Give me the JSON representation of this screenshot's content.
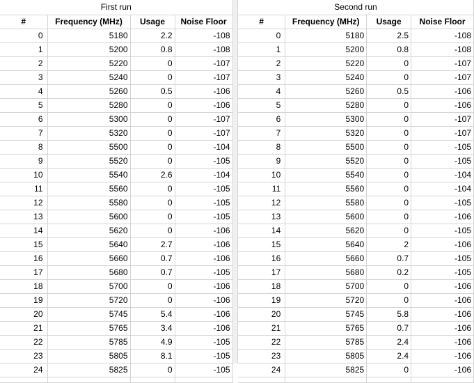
{
  "first_run": {
    "title": "First run",
    "headers": [
      "#",
      "Frequency (MHz)",
      "Usage",
      "Noise Floor"
    ],
    "rows": [
      [
        "0",
        "5180",
        "2.2",
        "-108"
      ],
      [
        "1",
        "5200",
        "0.8",
        "-108"
      ],
      [
        "2",
        "5220",
        "0",
        "-107"
      ],
      [
        "3",
        "5240",
        "0",
        "-107"
      ],
      [
        "4",
        "5260",
        "0.5",
        "-106"
      ],
      [
        "5",
        "5280",
        "0",
        "-106"
      ],
      [
        "6",
        "5300",
        "0",
        "-107"
      ],
      [
        "7",
        "5320",
        "0",
        "-107"
      ],
      [
        "8",
        "5500",
        "0",
        "-104"
      ],
      [
        "9",
        "5520",
        "0",
        "-105"
      ],
      [
        "10",
        "5540",
        "2.6",
        "-104"
      ],
      [
        "11",
        "5560",
        "0",
        "-105"
      ],
      [
        "12",
        "5580",
        "0",
        "-105"
      ],
      [
        "13",
        "5600",
        "0",
        "-105"
      ],
      [
        "14",
        "5620",
        "0",
        "-106"
      ],
      [
        "15",
        "5640",
        "2.7",
        "-106"
      ],
      [
        "16",
        "5660",
        "0.7",
        "-106"
      ],
      [
        "17",
        "5680",
        "0.7",
        "-105"
      ],
      [
        "18",
        "5700",
        "0",
        "-106"
      ],
      [
        "19",
        "5720",
        "0",
        "-106"
      ],
      [
        "20",
        "5745",
        "5.4",
        "-106"
      ],
      [
        "21",
        "5765",
        "3.4",
        "-106"
      ],
      [
        "22",
        "5785",
        "4.9",
        "-105"
      ],
      [
        "23",
        "5805",
        "8.1",
        "-105"
      ],
      [
        "24",
        "5825",
        "0",
        "-105"
      ]
    ]
  },
  "second_run": {
    "title": "Second run",
    "headers": [
      "#",
      "Frequency (MHz)",
      "Usage",
      "Noise Floor"
    ],
    "rows": [
      [
        "0",
        "5180",
        "2.5",
        "-108"
      ],
      [
        "1",
        "5200",
        "0.8",
        "-108"
      ],
      [
        "2",
        "5220",
        "0",
        "-107"
      ],
      [
        "3",
        "5240",
        "0",
        "-107"
      ],
      [
        "4",
        "5260",
        "0.5",
        "-106"
      ],
      [
        "5",
        "5280",
        "0",
        "-106"
      ],
      [
        "6",
        "5300",
        "0",
        "-107"
      ],
      [
        "7",
        "5320",
        "0",
        "-107"
      ],
      [
        "8",
        "5500",
        "0",
        "-105"
      ],
      [
        "9",
        "5520",
        "0",
        "-105"
      ],
      [
        "10",
        "5540",
        "0",
        "-104"
      ],
      [
        "11",
        "5560",
        "0",
        "-104"
      ],
      [
        "12",
        "5580",
        "0",
        "-105"
      ],
      [
        "13",
        "5600",
        "0",
        "-106"
      ],
      [
        "14",
        "5620",
        "0",
        "-105"
      ],
      [
        "15",
        "5640",
        "2",
        "-106"
      ],
      [
        "16",
        "5660",
        "0.7",
        "-105"
      ],
      [
        "17",
        "5680",
        "0.2",
        "-105"
      ],
      [
        "18",
        "5700",
        "0",
        "-106"
      ],
      [
        "19",
        "5720",
        "0",
        "-106"
      ],
      [
        "20",
        "5745",
        "5.8",
        "-106"
      ],
      [
        "21",
        "5765",
        "0.7",
        "-106"
      ],
      [
        "22",
        "5785",
        "2.4",
        "-106"
      ],
      [
        "23",
        "5805",
        "2.4",
        "-106"
      ],
      [
        "24",
        "5825",
        "0",
        "-106"
      ]
    ]
  }
}
